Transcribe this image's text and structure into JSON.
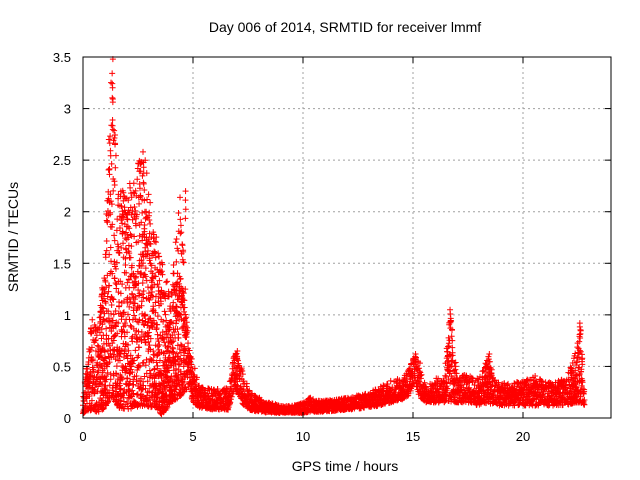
{
  "chart_data": {
    "type": "scatter",
    "title": "Day 006 of 2014, SRMTID for receiver lmmf",
    "xlabel": "GPS time / hours",
    "ylabel": "SRMTID / TECUs",
    "xlim": [
      0,
      24
    ],
    "ylim": [
      0,
      3.5
    ],
    "xticks": [
      0,
      5,
      10,
      15,
      20
    ],
    "yticks": [
      0,
      0.5,
      1,
      1.5,
      2,
      2.5,
      3,
      3.5
    ],
    "xtick_labels": [
      "0",
      "5",
      "10",
      "15",
      "20"
    ],
    "ytick_labels": [
      "0",
      "0.5",
      "1",
      "1.5",
      "2",
      "2.5",
      "3",
      "3.5"
    ],
    "grid": true,
    "marker": "+",
    "series": [
      {
        "name": "SRMTID",
        "color": "#ff0000",
        "envelope_note": "approximate upper/lower bounds of the dense '+' marker cloud, hours vs TECU",
        "peaks": [
          {
            "x": 1.35,
            "y": 3.48
          },
          {
            "x": 2.75,
            "y": 2.58
          },
          {
            "x": 4.65,
            "y": 2.2
          },
          {
            "x": 7.0,
            "y": 0.65
          },
          {
            "x": 15.1,
            "y": 0.62
          },
          {
            "x": 16.7,
            "y": 1.05
          },
          {
            "x": 18.45,
            "y": 0.62
          },
          {
            "x": 22.6,
            "y": 0.92
          }
        ],
        "x": [
          0.0,
          0.4,
          0.7,
          1.0,
          1.3,
          1.6,
          2.0,
          2.4,
          2.8,
          3.2,
          3.6,
          4.0,
          4.4,
          4.8,
          5.0,
          5.3,
          6.0,
          6.6,
          6.9,
          7.2,
          7.6,
          8.0,
          8.5,
          9.0,
          9.5,
          10.0,
          10.3,
          10.6,
          11.0,
          11.5,
          12.0,
          12.5,
          13.0,
          13.5,
          14.0,
          14.5,
          14.8,
          15.1,
          15.3,
          15.6,
          16.0,
          16.4,
          16.7,
          17.0,
          17.5,
          18.0,
          18.4,
          18.7,
          19.0,
          19.5,
          20.0,
          20.5,
          21.0,
          21.5,
          22.0,
          22.4,
          22.6,
          22.8
        ],
        "upper": [
          0.2,
          0.97,
          0.9,
          1.6,
          3.48,
          2.3,
          2.2,
          2.45,
          2.58,
          1.9,
          1.5,
          1.2,
          2.2,
          0.7,
          0.55,
          0.3,
          0.28,
          0.3,
          0.65,
          0.5,
          0.25,
          0.2,
          0.15,
          0.12,
          0.12,
          0.15,
          0.2,
          0.18,
          0.17,
          0.18,
          0.2,
          0.22,
          0.25,
          0.3,
          0.38,
          0.38,
          0.5,
          0.62,
          0.55,
          0.3,
          0.38,
          0.42,
          1.05,
          0.42,
          0.42,
          0.38,
          0.62,
          0.38,
          0.35,
          0.35,
          0.35,
          0.42,
          0.35,
          0.35,
          0.4,
          0.65,
          0.92,
          0.2
        ],
        "lower": [
          0.04,
          0.06,
          0.05,
          0.1,
          0.2,
          0.1,
          0.08,
          0.1,
          0.12,
          0.1,
          0.03,
          0.15,
          0.2,
          0.3,
          0.15,
          0.1,
          0.08,
          0.08,
          0.3,
          0.15,
          0.07,
          0.06,
          0.05,
          0.05,
          0.05,
          0.05,
          0.06,
          0.06,
          0.06,
          0.07,
          0.08,
          0.09,
          0.1,
          0.12,
          0.15,
          0.18,
          0.22,
          0.35,
          0.2,
          0.15,
          0.15,
          0.15,
          0.15,
          0.15,
          0.15,
          0.12,
          0.15,
          0.12,
          0.12,
          0.12,
          0.12,
          0.12,
          0.12,
          0.12,
          0.12,
          0.15,
          0.15,
          0.12
        ]
      }
    ]
  }
}
